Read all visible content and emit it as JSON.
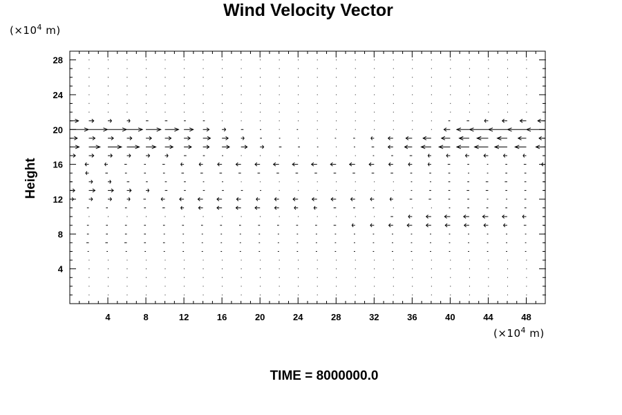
{
  "chart_data": {
    "type": "vector-field",
    "title": "Wind Velocity Vector",
    "ylabel": "Height",
    "xlabel": "",
    "y_unit_label": "(×10",
    "x_unit_label": "(×10",
    "unit_exponent": "4",
    "unit_suffix": " m)",
    "footer_label": "TIME = 8000000.0",
    "xlim": [
      0,
      50
    ],
    "ylim": [
      0,
      29
    ],
    "x_ticks": [
      "4",
      "8",
      "12",
      "16",
      "20",
      "24",
      "28",
      "32",
      "36",
      "40",
      "44",
      "48"
    ],
    "y_ticks": [
      "4",
      "8",
      "12",
      "16",
      "20",
      "24",
      "28"
    ],
    "grid": false,
    "vectors": [
      {
        "y": 21,
        "u": [
          1.4,
          0.8,
          0.6,
          0.5,
          0.4,
          0.4,
          0.3,
          0.3,
          0,
          0,
          0,
          0,
          0,
          0,
          0,
          0,
          0,
          0,
          0,
          0,
          -0.3,
          -0.4,
          -0.6,
          -0.8,
          -1.0,
          -1.2
        ]
      },
      {
        "y": 20,
        "u": [
          3.0,
          3.0,
          3.0,
          2.5,
          2.4,
          2.2,
          1.5,
          1.0,
          0.6,
          0.4,
          0.2,
          0,
          -0.2,
          0,
          0,
          0,
          0,
          0,
          0,
          0,
          -1.0,
          -2.0,
          -3.0,
          -3.0,
          -3.0,
          -3.0
        ]
      },
      {
        "y": 19,
        "u": [
          1.2,
          1.0,
          0.9,
          0.8,
          0.9,
          1.0,
          1.0,
          1.2,
          1.0,
          0.5,
          0.3,
          0.2,
          0,
          0,
          -0.2,
          -0.3,
          -0.5,
          -0.8,
          -1.0,
          -1.3,
          -1.4,
          -1.6,
          -1.8,
          -1.6,
          -1.3,
          -1.0
        ]
      },
      {
        "y": 18,
        "u": [
          1.5,
          1.8,
          2.2,
          2.0,
          1.6,
          1.3,
          1.2,
          1.0,
          1.2,
          1.0,
          0.6,
          0.4,
          0.3,
          0.2,
          0,
          -0.2,
          -0.4,
          -0.8,
          -1.2,
          -1.6,
          -1.8,
          -2.0,
          -2.2,
          -2.0,
          -1.8,
          -1.5
        ]
      },
      {
        "y": 17,
        "u": [
          0.9,
          0.8,
          0.7,
          0.6,
          0.6,
          0.5,
          0.4,
          0.3,
          0.2,
          0,
          0,
          0,
          0,
          0,
          0,
          0,
          -0.2,
          -0.3,
          -0.4,
          -0.5,
          -0.6,
          -0.6,
          -0.7,
          -0.6,
          -0.5,
          -0.4
        ]
      },
      {
        "y": 16,
        "u": [
          -0.8,
          -0.6,
          -0.5,
          -0.4,
          -0.3,
          -0.4,
          -0.5,
          -0.6,
          -0.7,
          -0.8,
          -0.8,
          -0.9,
          -0.9,
          -0.9,
          -0.9,
          -0.9,
          -0.8,
          -0.7,
          -0.6,
          -0.5,
          -0.4,
          -0.3,
          -0.2,
          -0.3,
          -0.4,
          -0.6
        ]
      },
      {
        "y": 15,
        "u": [
          -0.5,
          -0.5,
          -0.4,
          -0.3,
          -0.3,
          -0.3,
          -0.4,
          -0.4,
          -0.4,
          -0.4,
          -0.4,
          -0.4,
          -0.4,
          -0.4,
          -0.4,
          -0.4,
          -0.4,
          -0.4,
          -0.3,
          -0.3,
          -0.3,
          -0.2,
          -0.2,
          -0.3,
          -0.3,
          -0.4
        ]
      },
      {
        "y": 14,
        "u": [
          0.4,
          0.6,
          0.5,
          0.4,
          0.3,
          0.3,
          0.3,
          0.2,
          0.2,
          0,
          0,
          0,
          0,
          0,
          0,
          0,
          0,
          0,
          -0.2,
          -0.2,
          -0.3,
          -0.3,
          -0.4,
          -0.4,
          -0.3,
          -0.3
        ]
      },
      {
        "y": 13,
        "u": [
          0.8,
          1.0,
          0.9,
          0.7,
          0.5,
          0.4,
          0.3,
          0.3,
          0.3,
          0.3,
          0.2,
          0,
          0,
          0,
          0,
          0,
          0,
          0,
          -0.2,
          -0.3,
          -0.3,
          -0.4,
          -0.4,
          -0.3,
          -0.3,
          -0.3
        ]
      },
      {
        "y": 12,
        "u": [
          0.6,
          0.6,
          0.6,
          0.5,
          -0.4,
          -0.6,
          -0.7,
          -0.8,
          -0.8,
          -0.7,
          -0.6,
          -0.7,
          -0.8,
          -0.8,
          -0.8,
          -0.7,
          -0.6,
          -0.5,
          -0.4,
          -0.4,
          -0.3,
          -0.3,
          -0.2,
          -0.2,
          -0.3,
          -0.4
        ]
      },
      {
        "y": 11,
        "u": [
          -0.3,
          -0.3,
          -0.3,
          -0.3,
          -0.3,
          -0.4,
          -0.5,
          -0.7,
          -0.8,
          -0.8,
          -0.8,
          -0.7,
          -0.6,
          -0.5,
          -0.4,
          -0.3,
          -0.2,
          0,
          0,
          0,
          -0.2,
          -0.3,
          -0.3,
          -0.3,
          -0.3,
          -0.3
        ]
      },
      {
        "y": 10,
        "u": [
          0,
          0,
          0,
          0,
          0,
          0,
          0,
          0,
          0,
          0,
          0,
          0,
          0,
          0,
          0,
          0,
          0,
          -0.4,
          -0.6,
          -0.8,
          -0.9,
          -0.9,
          -0.9,
          -0.8,
          -0.6,
          -0.4
        ]
      },
      {
        "y": 9,
        "u": [
          -0.3,
          -0.3,
          -0.3,
          -0.3,
          -0.3,
          -0.3,
          -0.3,
          -0.3,
          -0.3,
          -0.3,
          -0.3,
          -0.3,
          -0.3,
          -0.3,
          -0.4,
          -0.5,
          -0.6,
          -0.7,
          -0.8,
          -0.8,
          -0.8,
          -0.8,
          -0.7,
          -0.6,
          -0.4,
          -0.3
        ]
      },
      {
        "y": 8,
        "u": [
          -0.2,
          -0.3,
          -0.3,
          -0.3,
          -0.3,
          -0.2,
          -0.2,
          -0.2,
          -0.2,
          -0.2,
          -0.2,
          -0.2,
          -0.2,
          -0.2,
          -0.2,
          -0.2,
          -0.2,
          -0.2,
          -0.2,
          -0.2,
          -0.2,
          -0.2,
          -0.2,
          -0.2,
          -0.2,
          -0.2
        ]
      },
      {
        "y": 7,
        "u": [
          -0.3,
          -0.4,
          -0.4,
          -0.4,
          -0.3,
          -0.3,
          -0.2,
          -0.2,
          -0.2,
          -0.2,
          -0.2,
          -0.2,
          -0.2,
          -0.2,
          -0.2,
          -0.2,
          -0.2,
          -0.2,
          -0.2,
          -0.2,
          -0.2,
          -0.2,
          -0.2,
          -0.2,
          -0.2,
          -0.2
        ]
      },
      {
        "y": 6,
        "u": [
          -0.2,
          -0.2,
          -0.2,
          -0.2,
          -0.2,
          -0.2,
          -0.2,
          -0.2,
          -0.2,
          -0.2,
          -0.2,
          -0.2,
          -0.2,
          -0.2,
          -0.2,
          -0.2,
          -0.2,
          -0.2,
          -0.2,
          -0.2,
          -0.2,
          -0.2,
          -0.2,
          -0.2,
          -0.2,
          -0.2
        ]
      }
    ]
  }
}
